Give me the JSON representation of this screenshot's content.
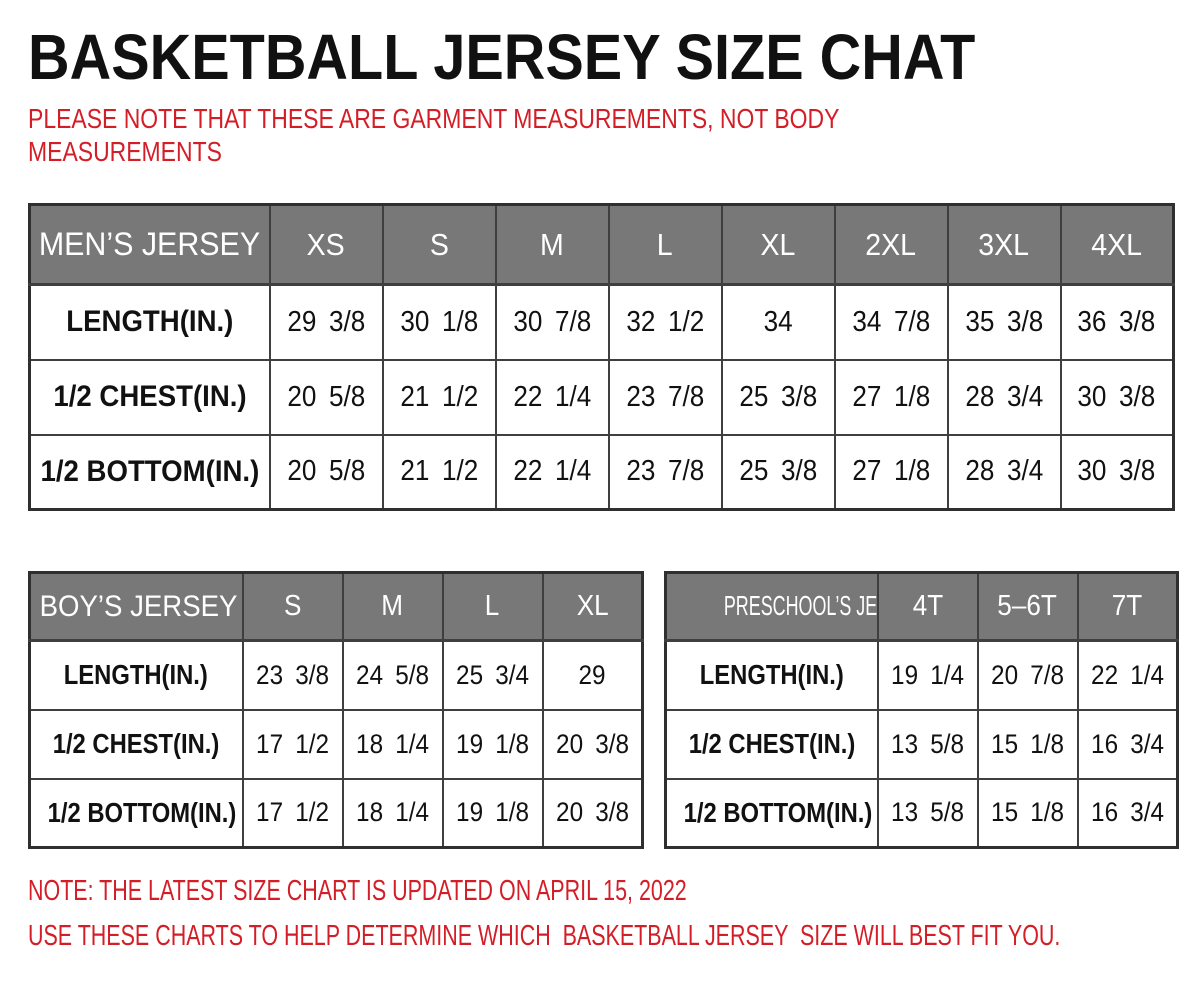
{
  "title": "BASKETBALL JERSEY SIZE CHAT",
  "top_note": "PLEASE NOTE THAT THESE ARE GARMENT MEASUREMENTS, NOT BODY MEASUREMENTS",
  "tables": {
    "mens": {
      "header": [
        "MEN’S JERSEY",
        "XS",
        "S",
        "M",
        "L",
        "XL",
        "2XL",
        "3XL",
        "4XL"
      ],
      "rows": [
        {
          "label": "LENGTH(IN.)",
          "values": [
            "29 3/8",
            "30 1/8",
            "30 7/8",
            "32 1/2",
            "34",
            "34 7/8",
            "35 3/8",
            "36 3/8"
          ]
        },
        {
          "label": "1/2 CHEST(IN.)",
          "values": [
            "20 5/8",
            "21 1/2",
            "22 1/4",
            "23 7/8",
            "25 3/8",
            "27 1/8",
            "28 3/4",
            "30 3/8"
          ]
        },
        {
          "label": "1/2 BOTTOM(IN.)",
          "values": [
            "20 5/8",
            "21 1/2",
            "22 1/4",
            "23 7/8",
            "25 3/8",
            "27 1/8",
            "28 3/4",
            "30 3/8"
          ]
        }
      ]
    },
    "boys": {
      "header": [
        "BOY’S JERSEY",
        "S",
        "M",
        "L",
        "XL"
      ],
      "rows": [
        {
          "label": "LENGTH(IN.)",
          "values": [
            "23 3/8",
            "24 5/8",
            "25 3/4",
            "29"
          ]
        },
        {
          "label": "1/2 CHEST(IN.)",
          "values": [
            "17 1/2",
            "18 1/4",
            "19 1/8",
            "20 3/8"
          ]
        },
        {
          "label": "1/2 BOTTOM(IN.)",
          "values": [
            "17 1/2",
            "18 1/4",
            "19 1/8",
            "20 3/8"
          ]
        }
      ]
    },
    "preschool": {
      "header": [
        "PRESCHOOL’S JERSEY",
        "4T",
        "5–6T",
        "7T"
      ],
      "rows": [
        {
          "label": "LENGTH(IN.)",
          "values": [
            "19 1/4",
            "20 7/8",
            "22 1/4"
          ]
        },
        {
          "label": "1/2 CHEST(IN.)",
          "values": [
            "13 5/8",
            "15 1/8",
            "16 3/4"
          ]
        },
        {
          "label": "1/2 BOTTOM(IN.)",
          "values": [
            "13 5/8",
            "15 1/8",
            "16 3/4"
          ]
        }
      ]
    }
  },
  "bottom_notes": [
    "NOTE: THE LATEST SIZE CHART IS UPDATED ON APRIL 15, 2022",
    "USE THESE CHARTS TO HELP DETERMINE WHICH  BASKETBALL JERSEY  SIZE WILL BEST FIT YOU."
  ],
  "colors": {
    "accent_red": "#d41e27",
    "header_bg": "#787878",
    "table_border": "#3f3f3f",
    "text": "#111111"
  }
}
